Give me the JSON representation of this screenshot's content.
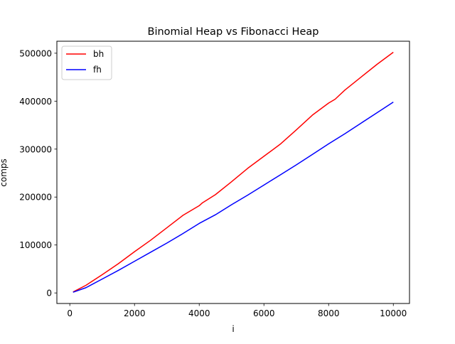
{
  "chart_data": {
    "type": "line",
    "title": "Binomial Heap vs Fibonacci Heap",
    "xlabel": "i",
    "ylabel": "comps",
    "xlim": [
      -400,
      10500
    ],
    "ylim": [
      -22000,
      525000
    ],
    "xticks": [
      0,
      2000,
      4000,
      6000,
      8000,
      10000
    ],
    "xtick_labels": [
      "0",
      "2000",
      "4000",
      "6000",
      "8000",
      "10000"
    ],
    "yticks": [
      0,
      100000,
      200000,
      300000,
      400000,
      500000
    ],
    "ytick_labels": [
      "0",
      "100000",
      "200000",
      "300000",
      "400000",
      "500000"
    ],
    "grid": false,
    "legend": "top-left",
    "series": [
      {
        "name": "bh",
        "color": "#ff0000",
        "x": [
          100,
          500,
          1000,
          1500,
          2000,
          2500,
          3000,
          3500,
          4000,
          4100,
          4500,
          5000,
          5500,
          6000,
          6100,
          6500,
          7000,
          7500,
          8000,
          8200,
          8500,
          9000,
          9500,
          10000
        ],
        "y": [
          2000,
          16000,
          38000,
          61000,
          86000,
          110000,
          136000,
          162000,
          182000,
          188000,
          205000,
          232000,
          260000,
          285000,
          290000,
          310000,
          340000,
          371000,
          396000,
          404000,
          423000,
          450000,
          477000,
          502000
        ]
      },
      {
        "name": "fh",
        "color": "#0000ff",
        "x": [
          100,
          500,
          1000,
          1500,
          2000,
          2500,
          3000,
          3500,
          4000,
          4500,
          5000,
          5500,
          6000,
          6500,
          7000,
          7500,
          8000,
          8500,
          9000,
          9500,
          10000
        ],
        "y": [
          1500,
          11000,
          29000,
          47000,
          66000,
          85000,
          104000,
          124000,
          145000,
          163000,
          184000,
          204000,
          225000,
          246000,
          267000,
          289000,
          311000,
          332000,
          354000,
          376000,
          398000
        ]
      }
    ]
  }
}
